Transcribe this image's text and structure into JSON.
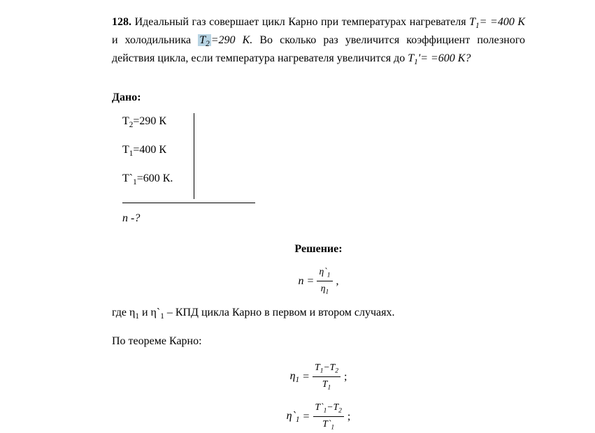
{
  "problem": {
    "number": "128.",
    "text_parts": {
      "p1": "Идеальный газ совершает цикл Карно при температурах нагревателя ",
      "t1_var": "T",
      "t1_sub": "1",
      "t1_eq": "=",
      "p2": " =400 К",
      "p3": " и холодильника ",
      "t2_highlight": "T",
      "t2_sub_h": "2",
      "t2_after": "=290 К.",
      "p4": " Во сколько раз увеличится коэффициент полезного действия цикла, если температура нагревателя увеличится до ",
      "t1p_var": "T",
      "t1p_sub": "1",
      "t1p_prime": "'=",
      "p5": " =600 К?"
    }
  },
  "given": {
    "title": "Дано:",
    "values": {
      "t2": "T",
      "t2_sub": "2",
      "t2_val": "=290 К",
      "t1": "T",
      "t1_sub": "1",
      "t1_val": "=400 К",
      "t1p": "T`",
      "t1p_sub": "1",
      "t1p_val": "=600 К."
    },
    "question": "n",
    "question_suffix": " -?"
  },
  "solution": {
    "title": "Решение:",
    "formula1": {
      "n": "n",
      "eq": " = ",
      "num": "η`",
      "num_sub": "1",
      "den": "η",
      "den_sub": "1",
      "comma": ","
    },
    "explanation": {
      "p1": "где η",
      "sub1": "1",
      "p2": " и η`",
      "sub2": "1",
      "p3": " – КПД цикла Карно в первом и втором случаях."
    },
    "theorem": "По теореме Карно:",
    "formula2": {
      "eta": "η",
      "sub": "1",
      "eq": " = ",
      "num_t1": "T",
      "num_t1_sub": "1",
      "num_minus": "−",
      "num_t2": "T",
      "num_t2_sub": "2",
      "den_t": "T",
      "den_sub": "1",
      "semi": ";"
    },
    "formula3": {
      "eta": "η`",
      "sub": "1",
      "eq": " = ",
      "num_t1": "T`",
      "num_t1_sub": "1",
      "num_minus": "−",
      "num_t2": "T",
      "num_t2_sub": "2",
      "den_t": "T`",
      "den_sub": "1",
      "semi": ";"
    }
  }
}
